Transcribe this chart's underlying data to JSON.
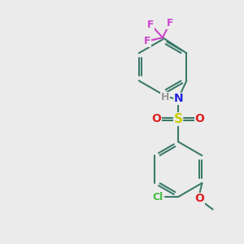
{
  "bg_color": "#ebebeb",
  "bond_color": "#3a7a6a",
  "bond_width": 1.5,
  "atom_colors": {
    "F": "#cc44cc",
    "N": "#2222dd",
    "H": "#999999",
    "S": "#cccc00",
    "O": "#dd2222",
    "Cl": "#44bb44",
    "C": "#3a7a6a"
  },
  "font_size": 9,
  "fig_size": [
    3.0,
    3.0
  ],
  "dpi": 100
}
